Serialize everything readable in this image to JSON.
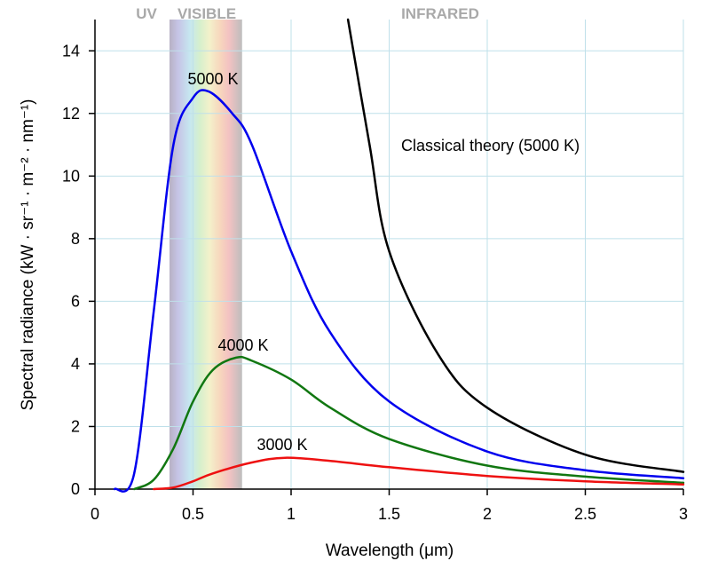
{
  "chart_data": {
    "type": "line",
    "title": "",
    "xlabel": "Wavelength (μm)",
    "ylabel": "Spectral radiance (kW · sr⁻¹ · m⁻² · nm⁻¹)",
    "xlim": [
      0,
      3
    ],
    "ylim": [
      0,
      15
    ],
    "x_ticks": [
      "0",
      "0.5",
      "1",
      "1.5",
      "2",
      "2.5",
      "3"
    ],
    "y_ticks": [
      "0",
      "2",
      "4",
      "6",
      "8",
      "10",
      "12",
      "14"
    ],
    "grid": true,
    "regions": [
      {
        "label": "UV",
        "x_start": 0,
        "x_end": 0.38
      },
      {
        "label": "VISIBLE",
        "x_start": 0.38,
        "x_end": 0.75
      },
      {
        "label": "INFRARED",
        "x_start": 0.75,
        "x_end": 3
      }
    ],
    "series": [
      {
        "name": "5000 K",
        "temperature": 5000,
        "color": "#0000ee",
        "x": [
          0.1,
          0.2,
          0.3,
          0.4,
          0.5,
          0.58,
          0.7,
          0.8,
          1.0,
          1.2,
          1.5,
          2.0,
          2.5,
          3.0
        ],
        "y": [
          0.0,
          0.5,
          5.7,
          11.0,
          12.5,
          12.7,
          12.0,
          11.0,
          7.6,
          5.0,
          2.8,
          1.2,
          0.6,
          0.35
        ]
      },
      {
        "name": "4000 K",
        "temperature": 4000,
        "color": "#117711",
        "x": [
          0.2,
          0.3,
          0.4,
          0.5,
          0.6,
          0.72,
          0.8,
          1.0,
          1.2,
          1.5,
          2.0,
          2.5,
          3.0
        ],
        "y": [
          0.0,
          0.3,
          1.3,
          2.8,
          3.8,
          4.2,
          4.1,
          3.5,
          2.6,
          1.6,
          0.75,
          0.4,
          0.2
        ]
      },
      {
        "name": "3000 K",
        "temperature": 3000,
        "color": "#ee1111",
        "x": [
          0.3,
          0.4,
          0.5,
          0.6,
          0.8,
          0.97,
          1.2,
          1.5,
          2.0,
          2.5,
          3.0
        ],
        "y": [
          0.0,
          0.05,
          0.25,
          0.5,
          0.85,
          1.0,
          0.9,
          0.7,
          0.42,
          0.25,
          0.15
        ]
      },
      {
        "name": "Classical theory (5000 K)",
        "temperature": 5000,
        "color": "#000000",
        "x": [
          1.29,
          1.4,
          1.5,
          1.75,
          2.0,
          2.5,
          3.0
        ],
        "y": [
          15,
          11.0,
          7.6,
          4.3,
          2.6,
          1.1,
          0.55
        ]
      }
    ],
    "annotations": [
      "5000 K",
      "4000 K",
      "3000 K",
      "Classical theory (5000 K)"
    ]
  }
}
